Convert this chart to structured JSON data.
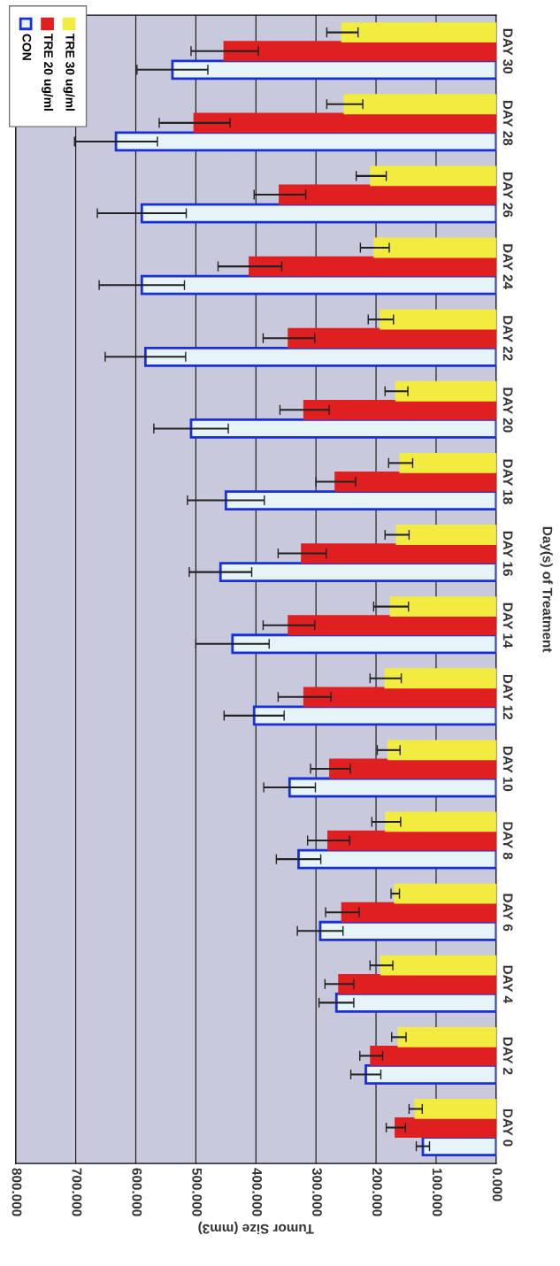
{
  "chart_data": {
    "type": "bar",
    "orientation": "horizontal",
    "xlabel": "Tumor Size (mm3)",
    "ylabel": "Day(s) of Treatment",
    "categories": [
      "DAY 30",
      "DAY 28",
      "DAY 26",
      "DAY 24",
      "DAY 22",
      "DAY 20",
      "DAY 18",
      "DAY 16",
      "DAY 14",
      "DAY 12",
      "DAY 10",
      "DAY 8",
      "DAY 6",
      "DAY 4",
      "DAY 2",
      "DAY 0"
    ],
    "series": [
      {
        "name": "CON",
        "color": "#e6f4f8",
        "values": [
          539,
          633,
          590,
          590,
          584,
          508,
          450,
          459,
          439,
          403,
          344,
          329,
          293,
          266,
          217,
          122
        ],
        "errors": [
          59,
          69,
          74,
          71,
          67,
          62,
          64,
          52,
          61,
          50,
          43,
          37,
          38,
          29,
          25,
          11
        ]
      },
      {
        "name": "TRE 20 ug/ml",
        "color": "#e02020",
        "values": [
          452,
          502,
          360,
          410,
          345,
          319,
          267,
          323,
          345,
          319,
          276,
          279,
          256,
          261,
          208,
          167
        ],
        "errors": [
          56,
          59,
          43,
          53,
          43,
          41,
          33,
          40,
          43,
          44,
          33,
          35,
          28,
          24,
          19,
          16
        ]
      },
      {
        "name": "TRE 30 ug/ml",
        "color": "#f2ec40",
        "values": [
          256,
          252,
          208,
          202,
          192,
          166,
          159,
          165,
          175,
          184,
          179,
          183,
          168,
          191,
          162,
          134
        ],
        "errors": [
          26,
          30,
          25,
          24,
          21,
          19,
          20,
          20,
          29,
          26,
          19,
          24,
          7,
          19,
          12,
          11
        ]
      }
    ],
    "xlim": [
      800,
      0
    ],
    "xticks": [
      {
        "value": 800,
        "label": "800.000"
      },
      {
        "value": 700,
        "label": "700.000"
      },
      {
        "value": 600,
        "label": "600.000"
      },
      {
        "value": 500,
        "label": "500.000"
      },
      {
        "value": 400,
        "label": "400.000"
      },
      {
        "value": 300,
        "label": "300.000"
      },
      {
        "value": 200,
        "label": "200.000"
      },
      {
        "value": 100,
        "label": "100.000"
      },
      {
        "value": 0,
        "label": "0.000"
      }
    ],
    "grid": "x",
    "legend": "top left"
  }
}
